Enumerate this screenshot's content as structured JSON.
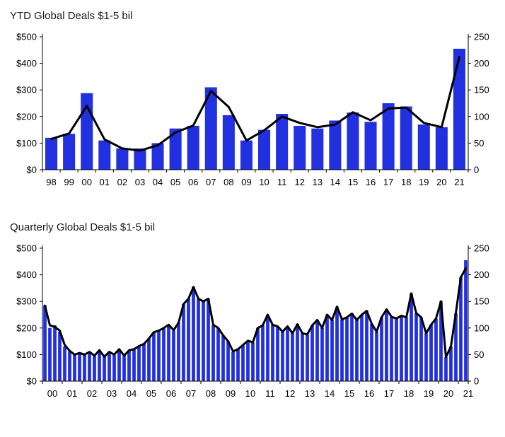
{
  "chart_data": [
    {
      "type": "bar+line",
      "title": "YTD Global Deals $1-5 bil",
      "bar_color": "#2231e0",
      "line_color": "#000000",
      "line_width": 3,
      "grid": false,
      "legend": "none",
      "left_axis": {
        "min": 0,
        "max": 500,
        "ticks": [
          "$0",
          "$100",
          "$200",
          "$300",
          "$400",
          "$500"
        ]
      },
      "right_axis": {
        "min": 0,
        "max": 250,
        "ticks": [
          "0",
          "50",
          "100",
          "150",
          "200",
          "250"
        ]
      },
      "categories": [
        "98",
        "99",
        "00",
        "01",
        "02",
        "03",
        "04",
        "05",
        "06",
        "07",
        "08",
        "09",
        "10",
        "11",
        "12",
        "13",
        "14",
        "15",
        "16",
        "17",
        "18",
        "19",
        "20",
        "21"
      ],
      "bars_per_category": 1,
      "bars": [
        120,
        135,
        288,
        110,
        80,
        80,
        100,
        155,
        165,
        310,
        205,
        110,
        150,
        210,
        165,
        155,
        185,
        215,
        180,
        250,
        238,
        170,
        160,
        455
      ],
      "line": [
        58,
        68,
        120,
        57,
        40,
        36,
        46,
        70,
        83,
        148,
        118,
        55,
        74,
        100,
        88,
        80,
        85,
        108,
        93,
        115,
        117,
        88,
        80,
        212
      ]
    },
    {
      "type": "bar+line",
      "title": "Quarterly Global Deals $1-5 bil",
      "bar_color": "#2231e0",
      "line_color": "#000000",
      "line_width": 3,
      "grid": false,
      "legend": "none",
      "left_axis": {
        "min": 0,
        "max": 500,
        "ticks": [
          "$0",
          "$100",
          "$200",
          "$300",
          "$400",
          "$500"
        ]
      },
      "right_axis": {
        "min": 0,
        "max": 250,
        "ticks": [
          "0",
          "50",
          "100",
          "150",
          "200",
          "250"
        ]
      },
      "categories": [
        "00",
        "01",
        "02",
        "03",
        "04",
        "05",
        "06",
        "07",
        "08",
        "09",
        "10",
        "11",
        "12",
        "13",
        "14",
        "15",
        "16",
        "17",
        "18",
        "19",
        "20",
        "21"
      ],
      "bars_per_category": 4,
      "bars": [
        285,
        200,
        210,
        185,
        130,
        112,
        100,
        105,
        100,
        108,
        95,
        118,
        92,
        110,
        98,
        120,
        95,
        115,
        118,
        130,
        140,
        160,
        185,
        190,
        200,
        212,
        190,
        220,
        290,
        310,
        355,
        310,
        300,
        310,
        210,
        200,
        172,
        150,
        110,
        120,
        135,
        152,
        145,
        200,
        210,
        250,
        212,
        205,
        185,
        205,
        180,
        215,
        180,
        175,
        210,
        230,
        200,
        250,
        230,
        280,
        232,
        240,
        255,
        230,
        250,
        265,
        215,
        185,
        240,
        270,
        242,
        235,
        245,
        240,
        330,
        255,
        240,
        180,
        212,
        235,
        300,
        90,
        130,
        255,
        390,
        455
      ],
      "line": [
        142,
        105,
        102,
        95,
        68,
        57,
        50,
        53,
        50,
        55,
        48,
        58,
        46,
        55,
        50,
        60,
        48,
        58,
        60,
        66,
        70,
        80,
        92,
        95,
        100,
        106,
        96,
        110,
        145,
        155,
        177,
        155,
        150,
        155,
        106,
        100,
        86,
        75,
        56,
        60,
        68,
        76,
        73,
        100,
        105,
        125,
        106,
        103,
        93,
        103,
        90,
        107,
        90,
        88,
        105,
        115,
        100,
        125,
        115,
        140,
        116,
        120,
        127,
        115,
        125,
        132,
        108,
        93,
        120,
        135,
        121,
        118,
        123,
        120,
        165,
        128,
        120,
        90,
        106,
        118,
        150,
        45,
        65,
        128,
        195,
        212
      ]
    }
  ]
}
